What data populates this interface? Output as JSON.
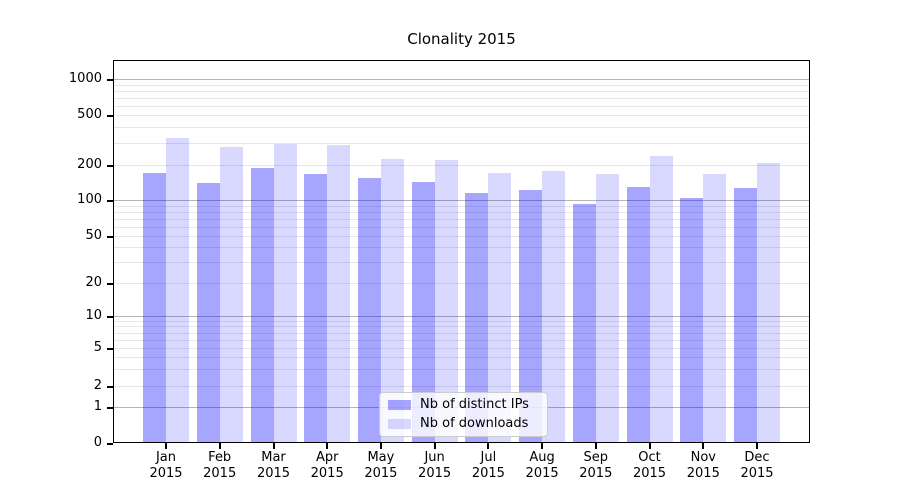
{
  "chart_data": {
    "type": "bar",
    "title": "Clonality 2015",
    "x_year": "2015",
    "categories": [
      "Jan",
      "Feb",
      "Mar",
      "Apr",
      "May",
      "Jun",
      "Jul",
      "Aug",
      "Sep",
      "Oct",
      "Nov",
      "Dec"
    ],
    "series": [
      {
        "key": "distinct-ips",
        "name": "Nb of distinct IPs",
        "color": "rgba(0,0,255,0.35)",
        "values": [
          170,
          141,
          189,
          168,
          155,
          142,
          115,
          122,
          93,
          130,
          105,
          126
        ]
      },
      {
        "key": "downloads",
        "name": "Nb of downloads",
        "color": "rgba(0,0,255,0.15)",
        "values": [
          330,
          277,
          295,
          288,
          224,
          219,
          171,
          178,
          167,
          236,
          168,
          206
        ]
      }
    ],
    "yscale": "symlog",
    "yticks": [
      0,
      1,
      2,
      5,
      10,
      20,
      50,
      100,
      200,
      500,
      1000
    ],
    "ylim": [
      0,
      1400
    ],
    "xlabel": "",
    "ylabel": "",
    "grid": "horizontal major+minor",
    "legend_position": "lower center",
    "colors": {
      "grid_minor": "#e7e7e7",
      "grid_major": "#b4b4b4",
      "axis": "#000000",
      "legend_border": "#cccccc"
    }
  }
}
